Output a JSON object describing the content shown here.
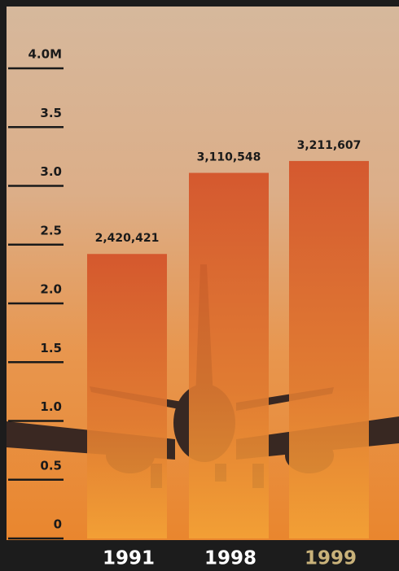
{
  "chart_data": {
    "type": "bar",
    "categories": [
      "1991",
      "1998",
      "1999"
    ],
    "category_colors": [
      "#ffffff",
      "#ffffff",
      "#c9b27a"
    ],
    "values": [
      2.420421,
      3.110548,
      3.211607
    ],
    "value_labels": [
      "2,420,421",
      "3,110,548",
      "3,211,607"
    ],
    "color": "#e0642a",
    "ylim": [
      0,
      4
    ],
    "yticks": [
      0,
      0.5,
      {
        "value": 1,
        "label": "1.0"
      },
      1.5,
      {
        "value": 2,
        "label": "2.0"
      },
      2.5,
      {
        "value": 3,
        "label": "3.0"
      },
      3.5,
      {
        "value": 4,
        "label": "4.0M"
      }
    ]
  }
}
